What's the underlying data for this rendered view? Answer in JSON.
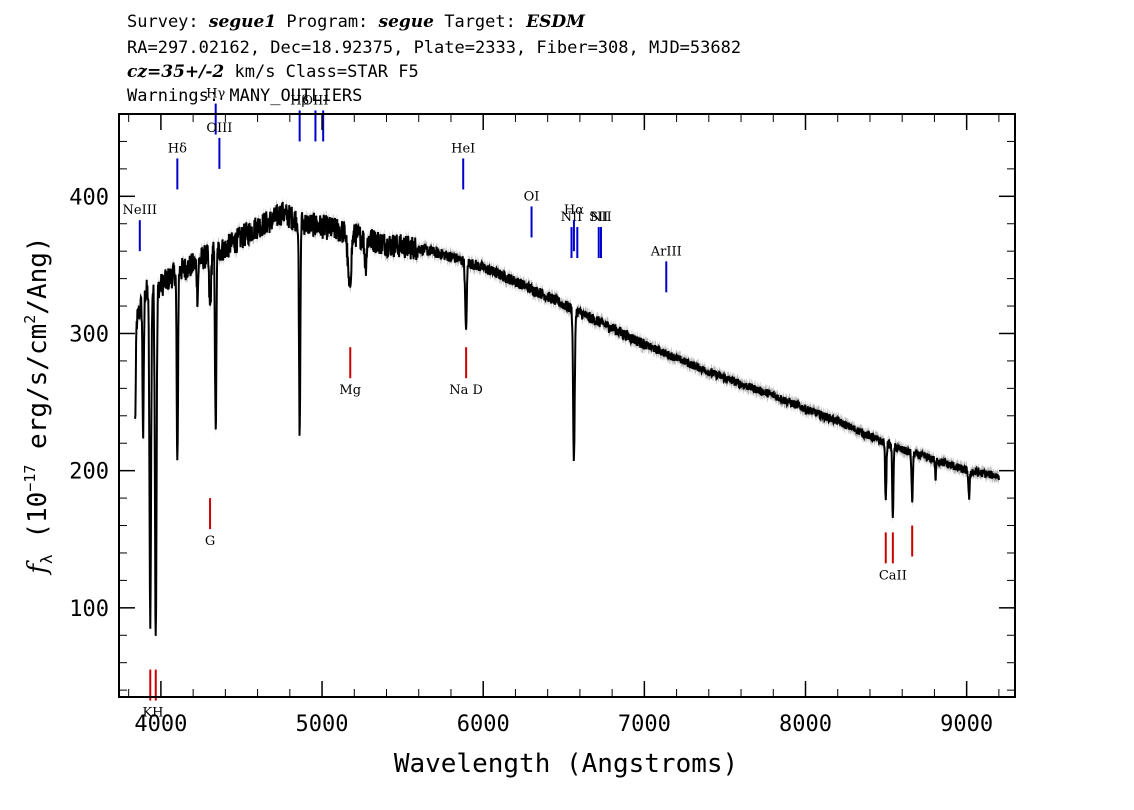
{
  "header": {
    "line1": {
      "survey_label": "Survey: ",
      "survey": "segue1",
      "program_label": " Program: ",
      "program": "segue",
      "target_label": " Target: ",
      "target": "ESDM"
    },
    "line2": "RA=297.02162, Dec=18.92375, Plate=2333, Fiber=308, MJD=53682",
    "line3": {
      "cz": "cz=35+/-2",
      "rest": " km/s Class=STAR F5"
    },
    "line4": "Warnings: MANY_OUTLIERS"
  },
  "chart_data": {
    "type": "line",
    "xlabel": "Wavelength (Angstroms)",
    "ylabel": "fλ (10^-17 erg/s/cm^2/Ang)",
    "ylabel_parts": {
      "f": "f",
      "lambda": "λ",
      "pre": " (10",
      "exp1": "−17",
      "mid": " erg/s/cm",
      "exp2": "2",
      "post": "/Ang)"
    },
    "xlim": [
      3740,
      9300
    ],
    "ylim": [
      35,
      460
    ],
    "xticks": [
      4000,
      5000,
      6000,
      7000,
      8000,
      9000
    ],
    "yticks": [
      100,
      200,
      300,
      400
    ],
    "colors": {
      "spectrum": "#000000",
      "error_band": "#b0b0b0",
      "emission": "#0000cc",
      "absorption": "#cc0000"
    },
    "continuum": [
      [
        3840,
        305
      ],
      [
        3900,
        330
      ],
      [
        4000,
        335
      ],
      [
        4100,
        345
      ],
      [
        4200,
        350
      ],
      [
        4300,
        358
      ],
      [
        4400,
        362
      ],
      [
        4500,
        370
      ],
      [
        4600,
        378
      ],
      [
        4700,
        383
      ],
      [
        4750,
        388
      ],
      [
        4800,
        385
      ],
      [
        4900,
        380
      ],
      [
        5000,
        378
      ],
      [
        5200,
        372
      ],
      [
        5400,
        365
      ],
      [
        5600,
        362
      ],
      [
        5800,
        356
      ],
      [
        6000,
        348
      ],
      [
        6200,
        338
      ],
      [
        6400,
        327
      ],
      [
        6600,
        315
      ],
      [
        6800,
        304
      ],
      [
        7000,
        292
      ],
      [
        7200,
        282
      ],
      [
        7400,
        272
      ],
      [
        7600,
        263
      ],
      [
        7800,
        255
      ],
      [
        8000,
        245
      ],
      [
        8200,
        236
      ],
      [
        8400,
        225
      ],
      [
        8600,
        215
      ],
      [
        8800,
        208
      ],
      [
        9000,
        200
      ],
      [
        9200,
        196
      ]
    ],
    "absorption_features": [
      [
        3840,
        70,
        4
      ],
      [
        3890,
        100,
        4
      ],
      [
        3934,
        240,
        5
      ],
      [
        3968,
        250,
        5
      ],
      [
        4102,
        145,
        4
      ],
      [
        4227,
        25,
        4
      ],
      [
        4305,
        40,
        6
      ],
      [
        4340,
        135,
        4
      ],
      [
        4861,
        160,
        4
      ],
      [
        5170,
        40,
        10
      ],
      [
        5270,
        20,
        6
      ],
      [
        5893,
        50,
        5
      ],
      [
        6563,
        110,
        5
      ],
      [
        8498,
        40,
        4
      ],
      [
        8542,
        50,
        4
      ],
      [
        8662,
        35,
        4
      ],
      [
        8807,
        15,
        3
      ],
      [
        9015,
        20,
        4
      ]
    ],
    "emission_lines": [
      {
        "label": "NeIII",
        "wavelength": 3869,
        "y": 360
      },
      {
        "label": "Hδ",
        "wavelength": 4102,
        "y": 405
      },
      {
        "label": "Hγ",
        "wavelength": 4340,
        "y": 445
      },
      {
        "label": "OIII",
        "wavelength": 4363,
        "y": 420
      },
      {
        "label": "Hβ",
        "wavelength": 4861,
        "y": 440
      },
      {
        "label": "OIII",
        "wavelength": 4959,
        "y": 440
      },
      {
        "label": "",
        "wavelength": 5007,
        "y": 440
      },
      {
        "label": "HeI",
        "wavelength": 5876,
        "y": 405
      },
      {
        "label": "OI",
        "wavelength": 6300,
        "y": 370
      },
      {
        "label": "NII",
        "wavelength": 6548,
        "y": 355
      },
      {
        "label": "Hα",
        "wavelength": 6563,
        "y": 360
      },
      {
        "label": "",
        "wavelength": 6584,
        "y": 355
      },
      {
        "label": "SII",
        "wavelength": 6717,
        "y": 355
      },
      {
        "label": "NII",
        "wavelength": 6731,
        "y": 355
      },
      {
        "label": "ArIII",
        "wavelength": 7136,
        "y": 330
      }
    ],
    "absorption_lines": [
      {
        "label": "KH",
        "wavelength": 3951,
        "marks": [
          3934,
          3968
        ],
        "y": 55
      },
      {
        "label": "G",
        "wavelength": 4305,
        "marks": [
          4305
        ],
        "y": 180
      },
      {
        "label": "Mg",
        "wavelength": 5175,
        "marks": [
          5175
        ],
        "y": 290
      },
      {
        "label": "Na D",
        "wavelength": 5894,
        "marks": [
          5894
        ],
        "y": 290
      },
      {
        "label": "CaII",
        "wavelength": 8542,
        "marks": [
          8498,
          8542
        ],
        "y": 155
      },
      {
        "label": "",
        "wavelength": 8662,
        "marks": [
          8662
        ],
        "y": 160
      }
    ]
  }
}
